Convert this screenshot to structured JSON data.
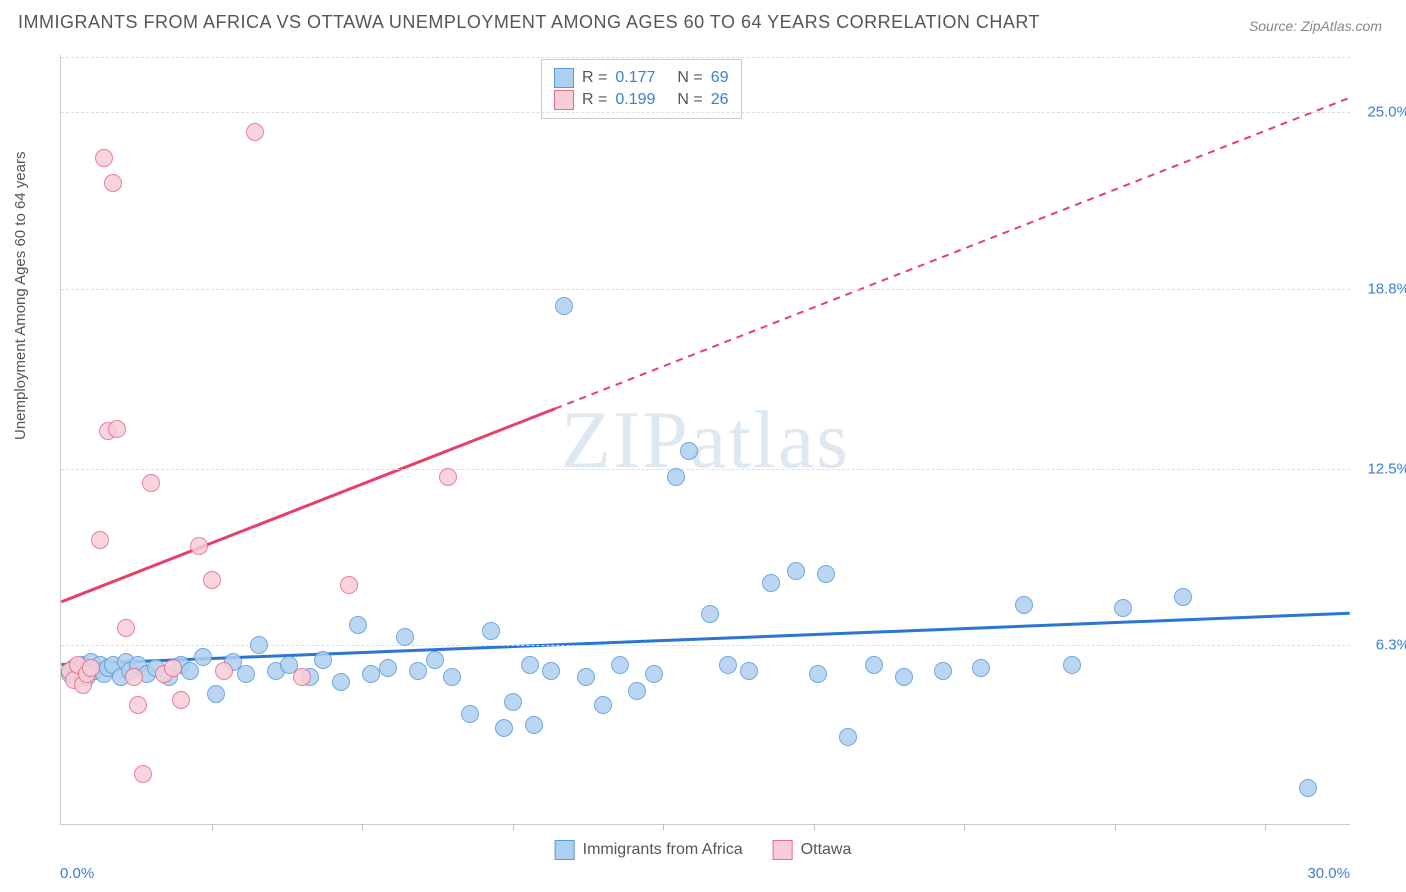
{
  "title": "IMMIGRANTS FROM AFRICA VS OTTAWA UNEMPLOYMENT AMONG AGES 60 TO 64 YEARS CORRELATION CHART",
  "source": "Source: ZipAtlas.com",
  "y_axis_title": "Unemployment Among Ages 60 to 64 years",
  "watermark": "ZIPatlas",
  "chart": {
    "type": "scatter",
    "xlim": [
      0,
      30
    ],
    "ylim": [
      0,
      27
    ],
    "x_tick_positions": [
      3.5,
      7,
      10.5,
      14,
      17.5,
      21,
      24.5,
      28
    ],
    "x_axis_labels": {
      "min": "0.0%",
      "max": "30.0%"
    },
    "y_gridlines": [
      {
        "value": 6.3,
        "label": "6.3%"
      },
      {
        "value": 12.5,
        "label": "12.5%"
      },
      {
        "value": 18.8,
        "label": "18.8%"
      },
      {
        "value": 25.0,
        "label": "25.0%"
      }
    ],
    "background_color": "#ffffff",
    "grid_color": "#dddddd",
    "point_radius": 9,
    "point_stroke_width": 1.5,
    "trend_line_width": 3,
    "series": [
      {
        "name": "Immigrants from Africa",
        "color_fill": "#aed0f0",
        "color_stroke": "#5b9ad8",
        "line_color": "#2a76d2",
        "R": "0.177",
        "N": "69",
        "trend": {
          "y_at_x0": 5.6,
          "y_at_xmax": 7.4
        },
        "solid_until_x": 30,
        "points": [
          [
            0.2,
            5.3
          ],
          [
            0.3,
            5.5
          ],
          [
            0.4,
            5.4
          ],
          [
            0.5,
            5.6
          ],
          [
            0.6,
            5.2
          ],
          [
            0.7,
            5.7
          ],
          [
            0.8,
            5.4
          ],
          [
            0.9,
            5.6
          ],
          [
            1.0,
            5.3
          ],
          [
            1.1,
            5.5
          ],
          [
            1.2,
            5.6
          ],
          [
            1.4,
            5.2
          ],
          [
            1.5,
            5.7
          ],
          [
            1.6,
            5.4
          ],
          [
            1.8,
            5.6
          ],
          [
            2.0,
            5.3
          ],
          [
            2.2,
            5.5
          ],
          [
            2.5,
            5.2
          ],
          [
            2.8,
            5.6
          ],
          [
            3.0,
            5.4
          ],
          [
            3.3,
            5.9
          ],
          [
            3.6,
            4.6
          ],
          [
            4.0,
            5.7
          ],
          [
            4.3,
            5.3
          ],
          [
            4.6,
            6.3
          ],
          [
            5.0,
            5.4
          ],
          [
            5.3,
            5.6
          ],
          [
            5.8,
            5.2
          ],
          [
            6.1,
            5.8
          ],
          [
            6.5,
            5.0
          ],
          [
            6.9,
            7.0
          ],
          [
            7.2,
            5.3
          ],
          [
            7.6,
            5.5
          ],
          [
            8.0,
            6.6
          ],
          [
            8.3,
            5.4
          ],
          [
            8.7,
            5.8
          ],
          [
            9.1,
            5.2
          ],
          [
            9.5,
            3.9
          ],
          [
            10.0,
            6.8
          ],
          [
            10.3,
            3.4
          ],
          [
            10.5,
            4.3
          ],
          [
            10.9,
            5.6
          ],
          [
            11.0,
            3.5
          ],
          [
            11.4,
            5.4
          ],
          [
            11.7,
            18.2
          ],
          [
            12.2,
            5.2
          ],
          [
            12.6,
            4.2
          ],
          [
            13.0,
            5.6
          ],
          [
            13.4,
            4.7
          ],
          [
            13.8,
            5.3
          ],
          [
            14.3,
            12.2
          ],
          [
            14.6,
            13.1
          ],
          [
            15.1,
            7.4
          ],
          [
            15.5,
            5.6
          ],
          [
            16.0,
            5.4
          ],
          [
            16.5,
            8.5
          ],
          [
            17.1,
            8.9
          ],
          [
            17.6,
            5.3
          ],
          [
            17.8,
            8.8
          ],
          [
            18.3,
            3.1
          ],
          [
            18.9,
            5.6
          ],
          [
            19.6,
            5.2
          ],
          [
            20.5,
            5.4
          ],
          [
            21.4,
            5.5
          ],
          [
            22.4,
            7.7
          ],
          [
            23.5,
            5.6
          ],
          [
            24.7,
            7.6
          ],
          [
            26.1,
            8.0
          ],
          [
            29.0,
            1.3
          ]
        ]
      },
      {
        "name": "Ottawa",
        "color_fill": "#f7cdd7",
        "color_stroke": "#e86b8a",
        "line_color": "#e83e6a",
        "R": "0.199",
        "N": "26",
        "trend": {
          "y_at_x0": 7.8,
          "y_at_xmax": 25.5
        },
        "solid_until_x": 11.5,
        "points": [
          [
            0.2,
            5.4
          ],
          [
            0.3,
            5.1
          ],
          [
            0.4,
            5.6
          ],
          [
            0.5,
            4.9
          ],
          [
            0.6,
            5.3
          ],
          [
            0.7,
            5.5
          ],
          [
            0.9,
            10.0
          ],
          [
            1.1,
            13.8
          ],
          [
            1.0,
            23.4
          ],
          [
            1.2,
            22.5
          ],
          [
            1.3,
            13.9
          ],
          [
            1.5,
            6.9
          ],
          [
            1.7,
            5.2
          ],
          [
            1.8,
            4.2
          ],
          [
            1.9,
            1.8
          ],
          [
            2.1,
            12.0
          ],
          [
            2.4,
            5.3
          ],
          [
            2.6,
            5.5
          ],
          [
            2.8,
            4.4
          ],
          [
            3.2,
            9.8
          ],
          [
            3.5,
            8.6
          ],
          [
            3.8,
            5.4
          ],
          [
            4.5,
            24.3
          ],
          [
            5.6,
            5.2
          ],
          [
            6.7,
            8.4
          ],
          [
            9.0,
            12.2
          ]
        ]
      }
    ]
  },
  "legend_bottom": [
    {
      "label": "Immigrants from Africa",
      "fill": "#aed0f0",
      "stroke": "#5b9ad8"
    },
    {
      "label": "Ottawa",
      "fill": "#f7cdd7",
      "stroke": "#e86b8a"
    }
  ]
}
